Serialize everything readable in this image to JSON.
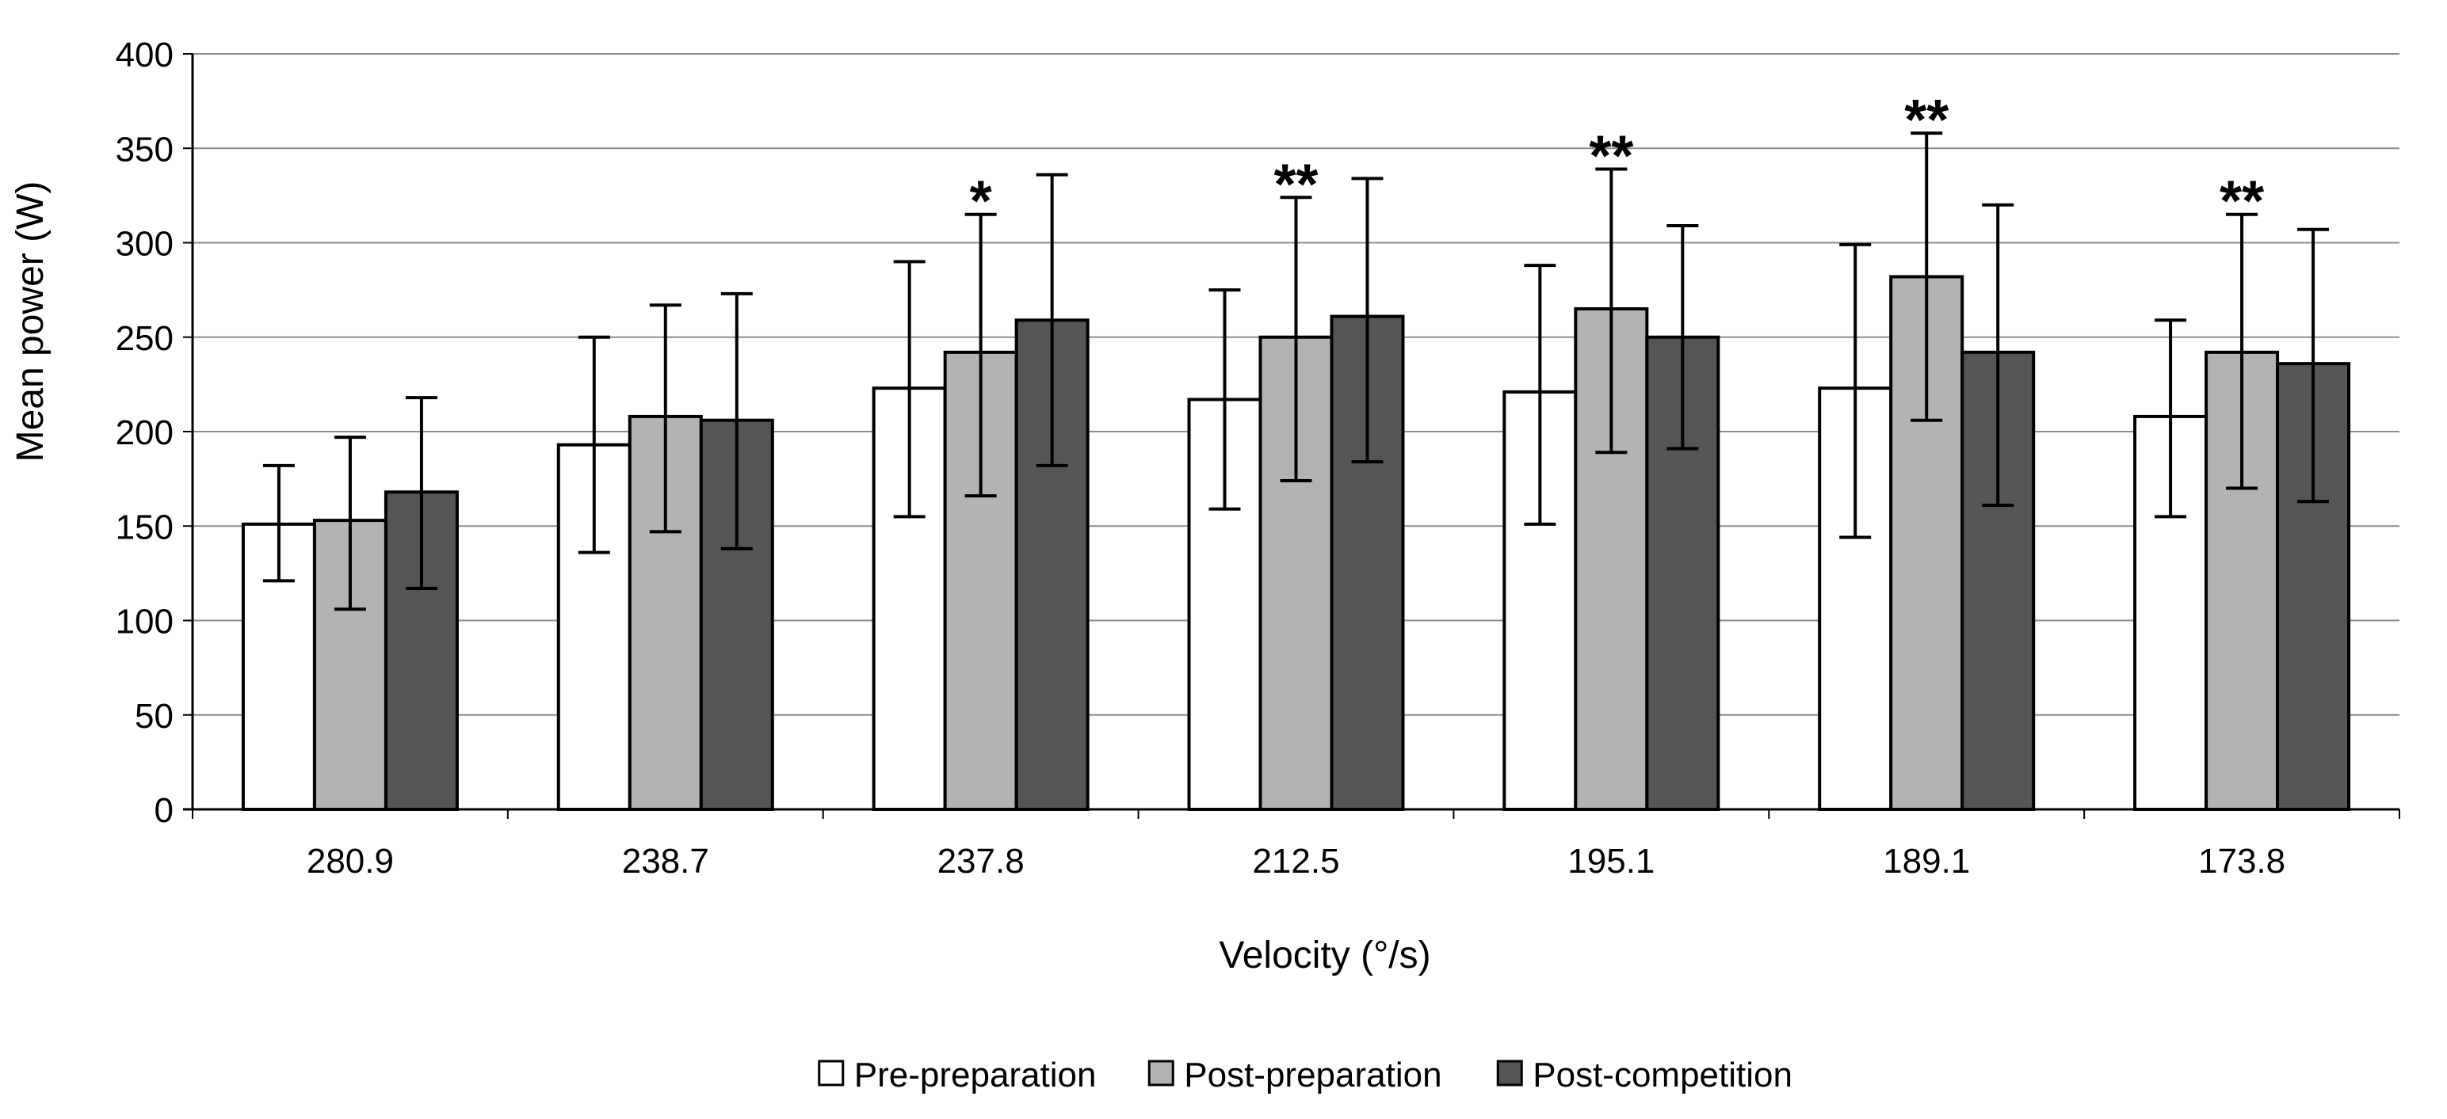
{
  "chart_data": {
    "type": "bar",
    "title": "",
    "xlabel": "Velocity (°/s)",
    "ylabel": "Mean power (W)",
    "ylim": [
      0,
      400
    ],
    "yticks": [
      0,
      50,
      100,
      150,
      200,
      250,
      300,
      350,
      400
    ],
    "grid": true,
    "legend_position": "bottom",
    "categories": [
      "280.9",
      "238.7",
      "237.8",
      "212.5",
      "195.1",
      "189.1",
      "173.8"
    ],
    "series": [
      {
        "name": "Pre-preparation",
        "color": "#ffffff",
        "values": [
          151,
          193,
          223,
          217,
          221,
          223,
          208
        ],
        "err_low": [
          121,
          136,
          155,
          159,
          151,
          144,
          155
        ],
        "err_high": [
          182,
          250,
          290,
          275,
          288,
          299,
          259
        ]
      },
      {
        "name": "Post-preparation",
        "color": "#b3b3b3",
        "values": [
          153,
          208,
          242,
          250,
          265,
          282,
          242
        ],
        "err_low": [
          106,
          147,
          166,
          174,
          189,
          206,
          170
        ],
        "err_high": [
          197,
          267,
          315,
          324,
          339,
          358,
          315
        ]
      },
      {
        "name": "Post-competition",
        "color": "#555555",
        "values": [
          168,
          206,
          259,
          261,
          250,
          242,
          236
        ],
        "err_low": [
          117,
          138,
          182,
          184,
          191,
          161,
          163
        ],
        "err_high": [
          218,
          273,
          336,
          334,
          309,
          320,
          307
        ]
      }
    ],
    "annotations": [
      {
        "category": "237.8",
        "series": "Post-preparation",
        "text": "*"
      },
      {
        "category": "212.5",
        "series": "Post-preparation",
        "text": "**"
      },
      {
        "category": "195.1",
        "series": "Post-preparation",
        "text": "**"
      },
      {
        "category": "189.1",
        "series": "Post-preparation",
        "text": "**"
      },
      {
        "category": "173.8",
        "series": "Post-preparation",
        "text": "**"
      }
    ]
  }
}
